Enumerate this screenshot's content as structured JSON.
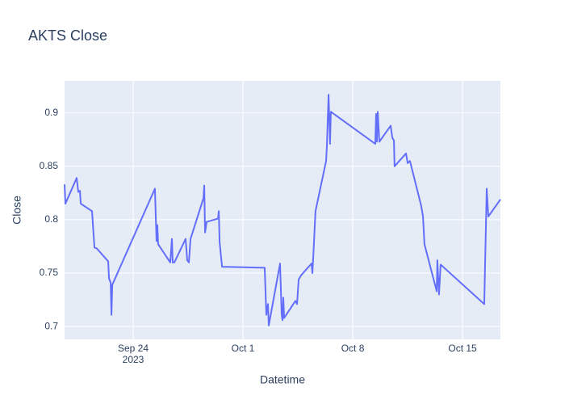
{
  "chart_data": {
    "type": "line",
    "title": "AKTS Close",
    "x_label": "Datetime",
    "y_label": "Close",
    "x_year_label": "2023",
    "color": "#636efa",
    "grid": true,
    "x": [
      "2023-09-19T15:00",
      "2023-09-19T16:15",
      "2023-09-20T09:30",
      "2023-09-20T12:00",
      "2023-09-20T14:30",
      "2023-09-20T15:45",
      "2023-09-21T09:00",
      "2023-09-21T12:45",
      "2023-09-21T16:30",
      "2023-09-22T09:45",
      "2023-09-22T11:00",
      "2023-09-22T13:30",
      "2023-09-22T14:45",
      "2023-09-22T16:00",
      "2023-09-25T09:15",
      "2023-09-25T11:45",
      "2023-09-25T13:00",
      "2023-09-25T14:15",
      "2023-09-26T08:45",
      "2023-09-26T11:15",
      "2023-09-26T12:30",
      "2023-09-26T15:00",
      "2023-09-27T08:15",
      "2023-09-27T10:45",
      "2023-09-27T13:15",
      "2023-09-27T15:45",
      "2023-09-28T11:30",
      "2023-09-28T12:45",
      "2023-09-28T14:00",
      "2023-09-28T16:30",
      "2023-09-29T09:45",
      "2023-09-29T11:00",
      "2023-09-29T12:15",
      "2023-09-29T16:00",
      "2023-10-02T09:15",
      "2023-10-02T11:45",
      "2023-10-02T14:15",
      "2023-10-02T15:30",
      "2023-10-03T08:45",
      "2023-10-03T11:15",
      "2023-10-03T12:30",
      "2023-10-03T13:45",
      "2023-10-03T15:00",
      "2023-10-04T08:15",
      "2023-10-04T10:45",
      "2023-10-04T13:15",
      "2023-10-04T17:00",
      "2023-10-05T09:00",
      "2023-10-05T10:15",
      "2023-10-05T11:30",
      "2023-10-05T15:00",
      "2023-10-06T07:15",
      "2023-10-06T08:30",
      "2023-10-06T11:00",
      "2023-10-06T13:15",
      "2023-10-06T14:30",
      "2023-10-09T10:30",
      "2023-10-09T11:45",
      "2023-10-09T13:00",
      "2023-10-09T14:15",
      "2023-10-09T16:45",
      "2023-10-10T10:00",
      "2023-10-10T12:30",
      "2023-10-10T15:00",
      "2023-10-10T16:00",
      "2023-10-11T09:30",
      "2023-10-11T12:00",
      "2023-10-11T15:30",
      "2023-10-12T08:45",
      "2023-10-12T11:30",
      "2023-10-12T13:45",
      "2023-10-13T08:30",
      "2023-10-13T09:30",
      "2023-10-13T12:00",
      "2023-10-13T14:30",
      "2023-10-16T09:15",
      "2023-10-16T13:00",
      "2023-10-16T15:30",
      "2023-10-17T10:00"
    ],
    "values": [
      0.833,
      0.815,
      0.839,
      0.826,
      0.827,
      0.815,
      0.808,
      0.774,
      0.773,
      0.761,
      0.745,
      0.741,
      0.711,
      0.739,
      0.829,
      0.78,
      0.795,
      0.777,
      0.76,
      0.782,
      0.76,
      0.76,
      0.782,
      0.762,
      0.76,
      0.782,
      0.82,
      0.832,
      0.788,
      0.798,
      0.801,
      0.808,
      0.779,
      0.756,
      0.755,
      0.711,
      0.721,
      0.701,
      0.759,
      0.711,
      0.706,
      0.727,
      0.708,
      0.724,
      0.721,
      0.744,
      0.748,
      0.759,
      0.75,
      0.764,
      0.808,
      0.855,
      0.87,
      0.917,
      0.871,
      0.901,
      0.871,
      0.899,
      0.873,
      0.901,
      0.873,
      0.888,
      0.877,
      0.874,
      0.85,
      0.862,
      0.853,
      0.855,
      0.813,
      0.803,
      0.777,
      0.733,
      0.762,
      0.73,
      0.758,
      0.721,
      0.829,
      0.803,
      0.819
    ],
    "xlim": [
      "2023-09-19T15:00",
      "2023-10-17T10:00"
    ],
    "xticks": [
      {
        "value": "2023-09-24T00:00",
        "label": "Sep 24"
      },
      {
        "value": "2023-10-01T00:00",
        "label": "Oct 1"
      },
      {
        "value": "2023-10-08T00:00",
        "label": "Oct 8"
      },
      {
        "value": "2023-10-15T00:00",
        "label": "Oct 15"
      }
    ],
    "ylim": [
      0.688,
      0.93
    ],
    "yticks": [
      0.7,
      0.75,
      0.8,
      0.85,
      0.9
    ]
  }
}
